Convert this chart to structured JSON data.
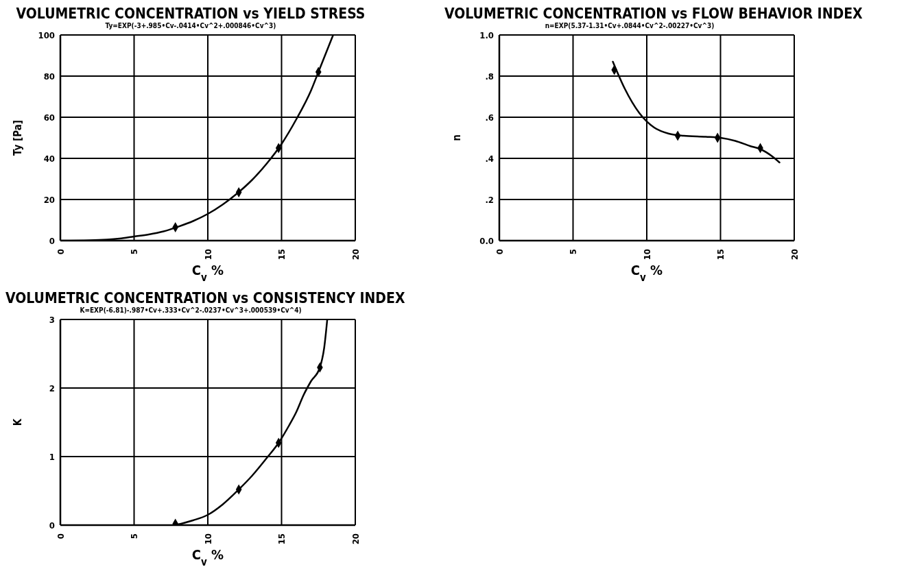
{
  "chart_data": [
    {
      "type": "line",
      "title": "VOLUMETRIC CONCENTRATION vs YIELD STRESS",
      "subtitle": "Ty=EXP(-3+.985•Cv-.0414•Cv^2+.000846•Cv^3)",
      "xlabel": "C$_{v}$ %",
      "ylabel": "Ty [Pa]",
      "xlim": [
        0,
        20
      ],
      "xticks": [
        0,
        5,
        10,
        15,
        20
      ],
      "ylim": [
        0,
        100
      ],
      "yticks": [
        0,
        20,
        40,
        60,
        80,
        100
      ],
      "grid": true,
      "line_style": "solid",
      "series": [
        {
          "color": "#000000",
          "marker": "none",
          "x": [
            0,
            2,
            4,
            5,
            6,
            7,
            8,
            9,
            10,
            11,
            12,
            13,
            14,
            15,
            16,
            17,
            17.5,
            18,
            18.5
          ],
          "values": [
            0,
            0.2,
            1,
            2,
            3,
            4.5,
            6.8,
            9.5,
            13,
            17.5,
            23,
            29.5,
            37.5,
            47,
            59,
            73,
            82,
            91,
            100
          ]
        },
        {
          "type": "scatter",
          "color": "#000000",
          "marker": "diamond",
          "x": [
            7.8,
            12.1,
            14.8,
            17.5
          ],
          "values": [
            6.5,
            23.5,
            45,
            82
          ]
        }
      ]
    },
    {
      "type": "line",
      "title": "VOLUMETRIC CONCENTRATION vs FLOW BEHAVIOR INDEX",
      "subtitle": "n=EXP(5.37-1.31•Cv+.0844•Cv^2-.00227•Cv^3)",
      "xlabel": "C$_{v}$ %",
      "ylabel": "n",
      "xlim": [
        0,
        20
      ],
      "xticks": [
        0,
        5,
        10,
        15,
        20
      ],
      "ylim": [
        0,
        1
      ],
      "yticks": [
        {
          "value": 0,
          "label": "0.0"
        },
        {
          "value": 0.2,
          "label": ".2"
        },
        {
          "value": 0.4,
          "label": ".4"
        },
        {
          "value": 0.6,
          "label": ".6"
        },
        {
          "value": 0.8,
          "label": ".8"
        },
        {
          "value": 1,
          "label": "1.0"
        }
      ],
      "grid": true,
      "line_style": "solid",
      "series": [
        {
          "color": "#000000",
          "marker": "none",
          "x": [
            7.7,
            8.5,
            9.5,
            10.5,
            11.5,
            12.5,
            14,
            15,
            16,
            17,
            17.7,
            18.5,
            19
          ],
          "values": [
            0.87,
            0.74,
            0.62,
            0.55,
            0.52,
            0.51,
            0.505,
            0.5,
            0.485,
            0.46,
            0.445,
            0.41,
            0.38
          ]
        },
        {
          "type": "scatter",
          "color": "#000000",
          "marker": "diamond",
          "x": [
            7.8,
            12.1,
            14.8,
            17.7
          ],
          "values": [
            0.83,
            0.51,
            0.5,
            0.45
          ]
        }
      ]
    },
    {
      "type": "line",
      "title": "VOLUMETRIC CONCENTRATION vs CONSISTENCY INDEX",
      "subtitle": "K=EXP(-6.81)-.987•Cv+.333•Cv^2-.0237•Cv^3+.000539•Cv^4)",
      "xlabel": "C$_{v}$ %",
      "ylabel": "K",
      "xlim": [
        0,
        20
      ],
      "xticks": [
        0,
        5,
        10,
        15,
        20
      ],
      "ylim": [
        0,
        3
      ],
      "yticks": [
        0,
        1,
        2,
        3
      ],
      "grid": true,
      "line_style": "solid",
      "series": [
        {
          "color": "#000000",
          "marker": "none",
          "x": [
            7.8,
            9,
            10,
            11,
            12.1,
            13,
            14,
            14.8,
            15.5,
            16,
            16.5,
            17,
            17.6,
            17.9,
            18.1
          ],
          "values": [
            0,
            0.07,
            0.15,
            0.3,
            0.52,
            0.72,
            0.98,
            1.2,
            1.45,
            1.65,
            1.9,
            2.1,
            2.3,
            2.6,
            3
          ]
        },
        {
          "type": "scatter",
          "color": "#000000",
          "marker": "diamond",
          "x": [
            7.8,
            12.1,
            14.8,
            17.6
          ],
          "values": [
            0.02,
            0.52,
            1.2,
            2.3
          ]
        }
      ]
    }
  ]
}
